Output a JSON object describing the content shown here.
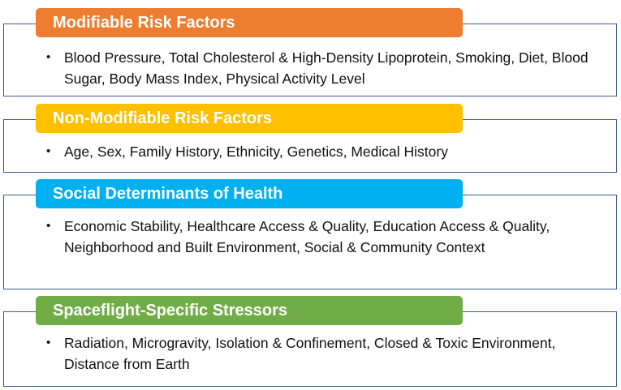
{
  "sections": [
    {
      "title": "Modifiable Risk Factors",
      "color": "#ed7d31",
      "bullet": "Blood Pressure, Total Cholesterol & High-Density Lipoprotein, Smoking, Diet, Blood Sugar, Body Mass Index, Physical Activity Level"
    },
    {
      "title": "Non-Modifiable Risk Factors",
      "color": "#ffc000",
      "bullet": "Age, Sex, Family History, Ethnicity, Genetics, Medical History"
    },
    {
      "title": "Social Determinants of Health",
      "color": "#00b0f0",
      "bullet": "Economic Stability, Healthcare Access & Quality, Education Access & Quality, Neighborhood and Built Environment, Social & Community Context"
    },
    {
      "title": "Spaceflight-Specific Stressors",
      "color": "#70ad47",
      "bullet": "Radiation, Microgravity, Isolation & Confinement, Closed & Toxic Environment, Distance from Earth"
    }
  ],
  "bullet_symbol": "•",
  "border_color": "#3c5a8a"
}
